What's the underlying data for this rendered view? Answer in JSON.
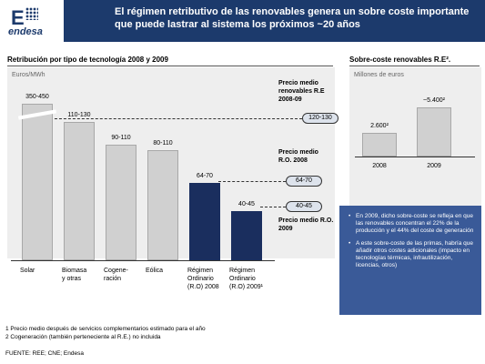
{
  "header": {
    "logo_text": "endesa",
    "title": "El régimen retributivo de las renovables genera un sobre coste importante que puede lastrar al sistema los próximos ~20 años"
  },
  "left_section": {
    "title": "Retribución por tipo de tecnología 2008 y 2009",
    "unit": "Euros/MWh"
  },
  "right_section": {
    "title": "Sobre-coste renovables R.E².",
    "unit": "Millones de euros"
  },
  "price_labels": {
    "re": "Precio medio renovables R.E 2008-09",
    "ro2008": "Precio medio R.O. 2008",
    "ro2009": "Precio medio R.O. 2009"
  },
  "price_ovals": {
    "re": "120-130",
    "ro2008": "64-70",
    "ro2009": "40-45"
  },
  "chart_data": [
    {
      "type": "bar",
      "title": "Retribución por tipo de tecnología 2008 y 2009",
      "ylabel": "Euros/MWh",
      "categories": [
        "Solar",
        "Biomasa y otras",
        "Cogeneración",
        "Eólica",
        "Régimen Ordinario (R.O) 2008",
        "Régimen Ordinario (R.O) 2009¹"
      ],
      "category_lines": [
        [
          "Solar"
        ],
        [
          "Biomasa",
          "y otras"
        ],
        [
          "Cogene-",
          "ración"
        ],
        [
          "Eólica"
        ],
        [
          "Régimen",
          "Ordinario",
          "(R.O) 2008"
        ],
        [
          "Régimen",
          "Ordinario",
          "(R.O) 2009¹"
        ]
      ],
      "value_labels": [
        "350-450",
        "110-130",
        "90-110",
        "80-110",
        "64-70",
        "40-45"
      ],
      "values": [
        400,
        120,
        100,
        95,
        67,
        42.5
      ],
      "colors": [
        "#d0d0d0",
        "#d0d0d0",
        "#d0d0d0",
        "#d0d0d0",
        "#1a2e5e",
        "#1a2e5e"
      ]
    },
    {
      "type": "bar",
      "title": "Sobre-coste renovables R.E².",
      "ylabel": "Millones de euros",
      "categories": [
        "2008",
        "2009"
      ],
      "value_labels": [
        "2.600²",
        "~5.400²"
      ],
      "values": [
        2600,
        5400
      ],
      "colors": [
        "#d0d0d0",
        "#d0d0d0"
      ]
    }
  ],
  "notes": [
    "En 2009, dicho sobre-coste se refleja en que las renovables concentran el 22% de la producción y el 44% del coste de generación",
    "A este sobre-coste de las primas, habría que añadir otros costes adicionales (impacto en tecnologías térmicas, infrautilización, licencias, otros)"
  ],
  "footnotes": [
    "1 Precio medio después de servicios complementarios estimado para el año",
    "2 Cogeneración (también perteneciente al R.E.) no incluida"
  ],
  "source": "FUENTE: REE; CNE; Endesa"
}
